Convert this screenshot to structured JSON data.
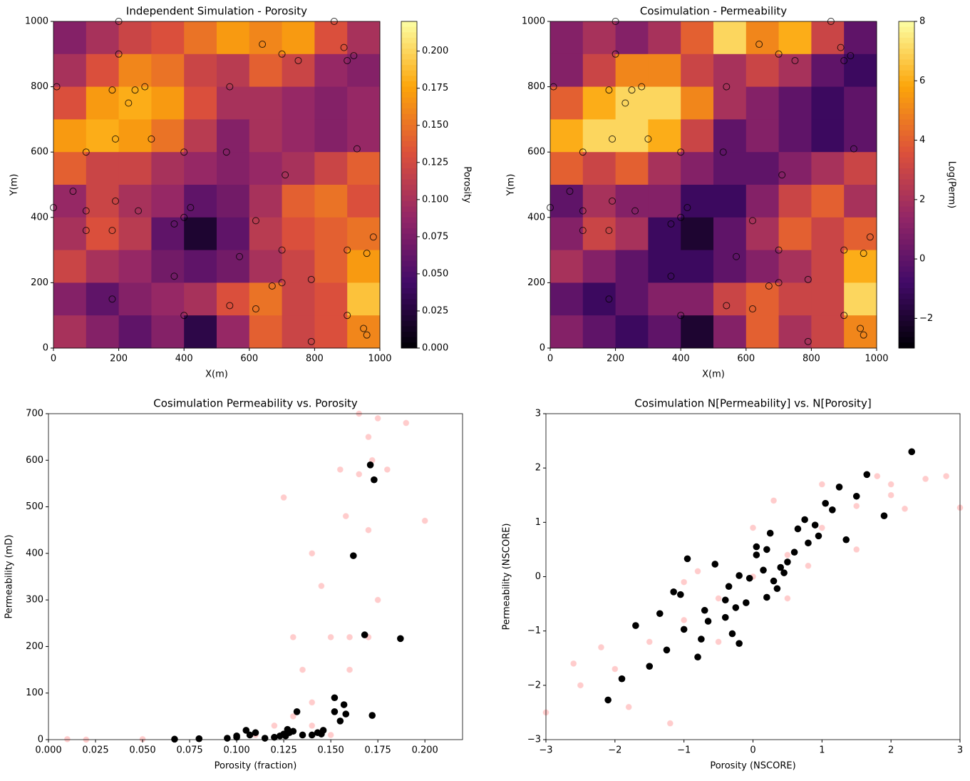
{
  "chart_data": [
    {
      "type": "heatmap",
      "title": "Independent Simulation - Porosity",
      "x_label": "X(m)",
      "y_label": "Y(m)",
      "xlim": [
        0,
        1000
      ],
      "ylim": [
        0,
        1000
      ],
      "xticks": [
        0,
        200,
        400,
        600,
        800,
        1000
      ],
      "yticks": [
        0,
        200,
        400,
        600,
        800,
        1000
      ],
      "colormap": [
        "#000004",
        "#420a68",
        "#932667",
        "#dd513a",
        "#fca50a",
        "#fcffa4"
      ],
      "colorbar": {
        "label": "Porosity",
        "lim": [
          0,
          0.22
        ],
        "ticks": [
          {
            "value": 0,
            "label": "0.000"
          },
          0.025,
          {
            "value": 0.05,
            "label": "0.050"
          },
          0.075,
          {
            "value": 0.1,
            "label": "0.100"
          },
          0.125,
          {
            "value": 0.15,
            "label": "0.150"
          },
          0.175,
          {
            "value": 0.2,
            "label": "0.200"
          }
        ]
      },
      "z": [
        [
          0.08,
          0.1,
          0.12,
          0.13,
          0.15,
          0.17,
          0.16,
          0.17,
          0.13,
          0.1
        ],
        [
          0.1,
          0.13,
          0.16,
          0.15,
          0.12,
          0.11,
          0.14,
          0.12,
          0.09,
          0.08
        ],
        [
          0.13,
          0.17,
          0.18,
          0.17,
          0.13,
          0.1,
          0.1,
          0.09,
          0.08,
          0.09
        ],
        [
          0.17,
          0.18,
          0.17,
          0.15,
          0.11,
          0.08,
          0.1,
          0.09,
          0.08,
          0.09
        ],
        [
          0.14,
          0.12,
          0.12,
          0.1,
          0.09,
          0.08,
          0.09,
          0.1,
          0.12,
          0.14
        ],
        [
          0.09,
          0.12,
          0.1,
          0.09,
          0.06,
          0.07,
          0.1,
          0.14,
          0.15,
          0.13
        ],
        [
          0.1,
          0.13,
          0.11,
          0.06,
          0.02,
          0.06,
          0.11,
          0.13,
          0.14,
          0.15
        ],
        [
          0.12,
          0.1,
          0.09,
          0.07,
          0.06,
          0.07,
          0.1,
          0.12,
          0.14,
          0.17
        ],
        [
          0.08,
          0.06,
          0.08,
          0.09,
          0.1,
          0.13,
          0.15,
          0.12,
          0.13,
          0.19
        ],
        [
          0.1,
          0.08,
          0.06,
          0.08,
          0.03,
          0.09,
          0.14,
          0.12,
          0.13,
          0.16
        ]
      ]
    },
    {
      "type": "heatmap",
      "title": "Cosimulation - Permeability",
      "x_label": "X(m)",
      "y_label": "Y(m)",
      "xlim": [
        0,
        1000
      ],
      "ylim": [
        0,
        1000
      ],
      "xticks": [
        0,
        200,
        400,
        600,
        800,
        1000
      ],
      "yticks": [
        0,
        200,
        400,
        600,
        800,
        1000
      ],
      "colormap": [
        "#000004",
        "#420a68",
        "#932667",
        "#dd513a",
        "#fca50a",
        "#fcffa4"
      ],
      "colorbar": {
        "label": "Log(Perm)",
        "lim": [
          -3,
          8
        ],
        "ticks": [
          {
            "value": -2,
            "label": "−2"
          },
          0,
          2,
          4,
          6,
          8
        ]
      },
      "z": [
        [
          1,
          2,
          1,
          2,
          4,
          7,
          5,
          6,
          3,
          0
        ],
        [
          1,
          3,
          5,
          5,
          3,
          2,
          3,
          2,
          0,
          -1
        ],
        [
          4,
          6,
          7,
          7,
          5,
          2,
          1,
          0,
          -1,
          0
        ],
        [
          6,
          7,
          7,
          6,
          3,
          0,
          1,
          0,
          -1,
          0
        ],
        [
          4,
          3,
          4,
          2,
          1,
          0,
          0,
          1,
          2,
          3
        ],
        [
          0,
          2,
          1,
          1,
          -1,
          -1,
          1,
          3,
          4,
          2
        ],
        [
          1,
          3,
          2,
          -1,
          -2,
          0,
          2,
          4,
          3,
          4
        ],
        [
          2,
          1,
          0,
          -1,
          -1,
          0,
          1,
          2,
          3,
          6
        ],
        [
          0,
          -1,
          0,
          1,
          1,
          3,
          4,
          3,
          3,
          7
        ],
        [
          1,
          0,
          -1,
          0,
          -2,
          1,
          4,
          2,
          3,
          5
        ]
      ]
    },
    {
      "type": "scatter",
      "title": "Cosimulation Permeability vs. Porosity",
      "x_label": "Porosity (fraction)",
      "y_label": "Permeability (mD)",
      "xlim": [
        0,
        0.22
      ],
      "ylim": [
        0,
        700
      ],
      "xticks": [
        {
          "value": 0,
          "label": "0.000"
        },
        0.025,
        {
          "value": 0.05,
          "label": "0.050"
        },
        0.075,
        {
          "value": 0.1,
          "label": "0.100"
        },
        0.125,
        {
          "value": 0.15,
          "label": "0.150"
        },
        0.175,
        {
          "value": 0.2,
          "label": "0.200"
        }
      ],
      "yticks": [
        0,
        100,
        200,
        300,
        400,
        500,
        600,
        700
      ],
      "series": [
        {
          "color": "#ff0000",
          "opacity": 0.2,
          "x": [
            0.13,
            0.14,
            0.15,
            0.16,
            0.17,
            0.155,
            0.165,
            0.172,
            0.14,
            0.17,
            0.175,
            0.16,
            0.13,
            0.12,
            0.1,
            0.05,
            0.02,
            0.01,
            0.14,
            0.15,
            0.17,
            0.175,
            0.18,
            0.19,
            0.2,
            0.125,
            0.145,
            0.165,
            0.158,
            0.135,
            0.11,
            0.08
          ],
          "y": [
            50,
            80,
            220,
            220,
            220,
            580,
            570,
            600,
            400,
            450,
            300,
            150,
            220,
            30,
            5,
            1,
            0,
            1,
            30,
            10,
            650,
            690,
            580,
            680,
            470,
            520,
            330,
            700,
            480,
            150,
            10,
            2
          ]
        },
        {
          "color": "#000000",
          "opacity": 1,
          "x": [
            0.067,
            0.08,
            0.095,
            0.1,
            0.1,
            0.105,
            0.107,
            0.11,
            0.115,
            0.12,
            0.123,
            0.125,
            0.127,
            0.13,
            0.132,
            0.135,
            0.14,
            0.143,
            0.146,
            0.152,
            0.152,
            0.155,
            0.157,
            0.158,
            0.162,
            0.168,
            0.171,
            0.172,
            0.173,
            0.187,
            0.126,
            0.128,
            0.145
          ],
          "y": [
            1,
            2,
            3,
            5,
            8,
            20,
            10,
            15,
            3,
            5,
            8,
            12,
            22,
            18,
            60,
            10,
            10,
            15,
            20,
            90,
            60,
            40,
            75,
            55,
            395,
            225,
            590,
            52,
            558,
            217,
            8,
            15,
            12
          ]
        }
      ]
    },
    {
      "type": "scatter",
      "title": "Cosimulation N[Permeability] vs. N[Porosity]",
      "x_label": "Porosity (NSCORE)",
      "y_label": "Permeability (NSCORE)",
      "xlim": [
        -3,
        3
      ],
      "ylim": [
        -3,
        3
      ],
      "xticks": [
        {
          "value": -3,
          "label": "−3"
        },
        {
          "value": -2,
          "label": "−2"
        },
        {
          "value": -1,
          "label": "−1"
        },
        0,
        1,
        2,
        3
      ],
      "yticks": [
        {
          "value": -3,
          "label": "−3"
        },
        {
          "value": -2,
          "label": "−2"
        },
        {
          "value": -1,
          "label": "−1"
        },
        0,
        1,
        2,
        3
      ],
      "series": [
        {
          "color": "#ff0000",
          "opacity": 0.2,
          "x": [
            -3,
            -2.5,
            -2,
            -1.5,
            -1,
            -0.5,
            0,
            0.5,
            1,
            1.5,
            2,
            2.5,
            2.8,
            3,
            -2.2,
            -1.8,
            -1,
            -0.5,
            0,
            0.5,
            1,
            1.5,
            2,
            -1.2,
            0.3,
            1.8,
            -0.8,
            0.8,
            2.2,
            -2.6
          ],
          "y": [
            -2.5,
            -2,
            -1.7,
            -1.2,
            -0.8,
            -0.4,
            0,
            0.4,
            0.9,
            1.3,
            1.7,
            1.8,
            1.85,
            1.27,
            -1.3,
            -2.4,
            -0.1,
            -1.2,
            0.9,
            -0.4,
            1.7,
            0.5,
            1.5,
            -2.7,
            1.4,
            1.85,
            0.1,
            0.2,
            1.25,
            -1.6
          ]
        },
        {
          "color": "#000000",
          "opacity": 1,
          "x": [
            2.3,
            1.65,
            1.25,
            1.5,
            1.05,
            1.15,
            1.9,
            0.75,
            0.65,
            0.9,
            0.95,
            1.35,
            0.6,
            0.8,
            0.25,
            0.05,
            0.2,
            0.05,
            -0.95,
            -0.55,
            0.5,
            0.4,
            0.15,
            0.45,
            0.3,
            0.35,
            -0.35,
            -0.2,
            -0.05,
            0.2,
            -0.4,
            -0.1,
            -0.25,
            -1.15,
            -1.05,
            -0.7,
            -0.4,
            -1.35,
            -0.65,
            -1,
            -0.3,
            -0.75,
            -1.7,
            -1.25,
            -0.8,
            -0.2,
            -1.5,
            -1.9,
            -2.1
          ],
          "y": [
            2.3,
            1.88,
            1.65,
            1.48,
            1.35,
            1.23,
            1.12,
            1.05,
            0.88,
            0.95,
            0.75,
            0.68,
            0.45,
            0.62,
            0.8,
            0.55,
            0.5,
            0.4,
            0.33,
            0.23,
            0.27,
            0.17,
            0.12,
            0.07,
            -0.08,
            -0.22,
            -0.18,
            0.02,
            -0.03,
            -0.38,
            -0.43,
            -0.48,
            -0.57,
            -0.28,
            -0.33,
            -0.62,
            -0.75,
            -0.68,
            -0.82,
            -0.97,
            -1.05,
            -1.15,
            -0.9,
            -1.35,
            -1.48,
            -1.23,
            -1.65,
            -1.88,
            -2.27
          ]
        }
      ]
    }
  ],
  "wells": {
    "x": [
      10,
      200,
      200,
      180,
      250,
      280,
      230,
      190,
      300,
      100,
      400,
      530,
      540,
      640,
      700,
      750,
      860,
      890,
      920,
      900,
      930,
      710,
      60,
      0,
      100,
      190,
      260,
      420,
      400,
      370,
      100,
      180,
      620,
      980,
      570,
      700,
      900,
      960,
      370,
      670,
      700,
      790,
      180,
      400,
      540,
      620,
      900,
      950,
      960,
      790
    ],
    "y": [
      800,
      1000,
      900,
      790,
      790,
      800,
      750,
      640,
      640,
      600,
      600,
      600,
      800,
      930,
      900,
      880,
      1000,
      920,
      895,
      880,
      610,
      530,
      480,
      430,
      420,
      450,
      420,
      430,
      400,
      380,
      360,
      360,
      390,
      340,
      280,
      300,
      300,
      290,
      220,
      190,
      200,
      210,
      150,
      100,
      130,
      120,
      100,
      60,
      40,
      20
    ]
  }
}
